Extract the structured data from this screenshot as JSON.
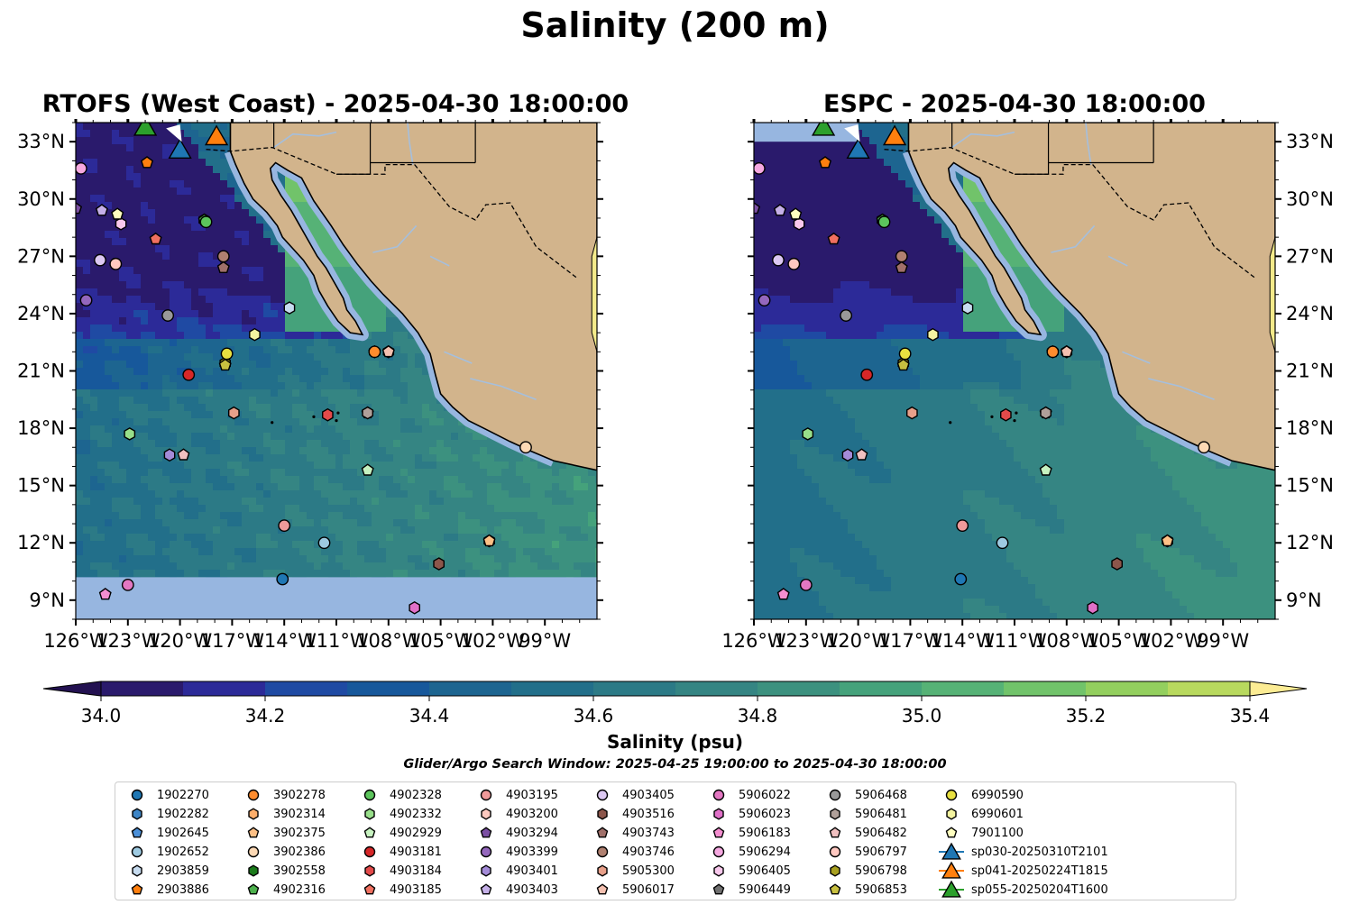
{
  "figure": {
    "title": "Salinity (200 m)",
    "colorbar_label": "Salinity (psu)",
    "search_window": "Glider/Argo Search Window: 2025-04-25 19:00:00 to 2025-04-30 18:00:00"
  },
  "chart_data": [
    {
      "type": "heatmap",
      "title": "RTOFS (West Coast) - 2025-04-30 18:00:00",
      "xlim": [
        -126,
        -96
      ],
      "ylim": [
        8,
        34
      ],
      "x_ticks": [
        "126°W",
        "123°W",
        "120°W",
        "117°W",
        "114°W",
        "111°W",
        "108°W",
        "105°W",
        "102°W",
        "99°W"
      ],
      "y_ticks": [
        "9°N",
        "12°N",
        "15°N",
        "18°N",
        "21°N",
        "24°N",
        "27°N",
        "30°N",
        "33°N"
      ],
      "y_tick_side": "left",
      "no_data_below_lat": 10.2,
      "field_range": [
        34.0,
        35.4
      ]
    },
    {
      "type": "heatmap",
      "title": "ESPC - 2025-04-30 18:00:00",
      "xlim": [
        -126,
        -96
      ],
      "ylim": [
        8,
        34
      ],
      "x_ticks": [
        "126°W",
        "123°W",
        "120°W",
        "117°W",
        "114°W",
        "111°W",
        "108°W",
        "105°W",
        "102°W",
        "99°W"
      ],
      "y_ticks": [
        "9°N",
        "12°N",
        "15°N",
        "18°N",
        "21°N",
        "24°N",
        "27°N",
        "30°N",
        "33°N"
      ],
      "y_tick_side": "right",
      "no_data_above_lat": 33.0,
      "field_range": [
        34.0,
        35.4
      ]
    }
  ],
  "colorbar": {
    "min": 34.0,
    "max": 35.4,
    "levels": [
      34.0,
      34.1,
      34.2,
      34.3,
      34.4,
      34.5,
      34.6,
      34.7,
      34.8,
      34.9,
      35.0,
      35.1,
      35.2,
      35.3,
      35.4
    ],
    "colors": [
      "#2a1a6c",
      "#2c2a98",
      "#1f4aa3",
      "#17589b",
      "#1d6590",
      "#226f8a",
      "#2c7a86",
      "#358583",
      "#3c917f",
      "#45a27b",
      "#56b276",
      "#71c36a",
      "#93cf5e",
      "#b8d95e",
      "#d6e06e"
    ],
    "under_color": "#231151",
    "over_color": "#fcec94",
    "tick_labels": [
      "34.0",
      "34.2",
      "34.4",
      "34.6",
      "34.8",
      "35.0",
      "35.2",
      "35.4"
    ],
    "extend": "both"
  },
  "map_colors": {
    "land": "#d2b48c",
    "nodata": "#97b6e0",
    "coast": "#000000",
    "river": "#a5bfdd"
  },
  "platforms": [
    {
      "id": "1902270",
      "marker": "circle",
      "color": "#1f77b4",
      "lon": -114.1,
      "lat": 10.1
    },
    {
      "id": "1902282",
      "marker": "hexagon",
      "color": "#3d85c6",
      "lon": -108.8,
      "lat": 22.0
    },
    {
      "id": "1902645",
      "marker": "pentagon",
      "color": "#4c90d8",
      "lon": -108.8,
      "lat": 22.0
    },
    {
      "id": "1902652",
      "marker": "circle",
      "color": "#9ecae1",
      "lon": -111.7,
      "lat": 12.0
    },
    {
      "id": "2903859",
      "marker": "hexagon",
      "color": "#c6dbef",
      "lon": -113.7,
      "lat": 24.3
    },
    {
      "id": "2903886",
      "marker": "pentagon",
      "color": "#ff7f0e",
      "lon": -121.9,
      "lat": 31.9
    },
    {
      "id": "3902278",
      "marker": "circle",
      "color": "#ff8c2e",
      "lon": -108.8,
      "lat": 22.0
    },
    {
      "id": "3902314",
      "marker": "hexagon",
      "color": "#fdae6b",
      "lon": -102.2,
      "lat": 12.1
    },
    {
      "id": "3902375",
      "marker": "pentagon",
      "color": "#fdc086",
      "lon": -102.2,
      "lat": 12.1
    },
    {
      "id": "3902386",
      "marker": "circle",
      "color": "#fdd9b5",
      "lon": -100.1,
      "lat": 17.0
    },
    {
      "id": "3902558",
      "marker": "hexagon",
      "color": "#1a7a1a",
      "lon": -118.6,
      "lat": 28.9
    },
    {
      "id": "4902316",
      "marker": "pentagon",
      "color": "#4cb04c",
      "lon": -118.6,
      "lat": 28.9
    },
    {
      "id": "4902328",
      "marker": "circle",
      "color": "#5cc45c",
      "lon": -118.5,
      "lat": 28.8
    },
    {
      "id": "4902332",
      "marker": "hexagon",
      "color": "#98df8a",
      "lon": -122.9,
      "lat": 17.7
    },
    {
      "id": "4902929",
      "marker": "pentagon",
      "color": "#c7f2c0",
      "lon": -109.2,
      "lat": 15.8
    },
    {
      "id": "4903181",
      "marker": "circle",
      "color": "#d62728",
      "lon": -119.5,
      "lat": 20.8
    },
    {
      "id": "4903184",
      "marker": "hexagon",
      "color": "#e34a4a",
      "lon": -111.5,
      "lat": 18.7
    },
    {
      "id": "4903185",
      "marker": "pentagon",
      "color": "#f07060",
      "lon": -121.4,
      "lat": 27.9
    },
    {
      "id": "4903195",
      "marker": "circle",
      "color": "#f09a9a",
      "lon": -114.0,
      "lat": 12.9
    },
    {
      "id": "4903200",
      "marker": "hexagon",
      "color": "#fbc8bf",
      "lon": -108.0,
      "lat": 22.0
    },
    {
      "id": "4903294",
      "marker": "pentagon",
      "color": "#7b4fa3",
      "lon": -126.0,
      "lat": 29.5
    },
    {
      "id": "4903399",
      "marker": "circle",
      "color": "#9467bd",
      "lon": -125.4,
      "lat": 24.7
    },
    {
      "id": "4903401",
      "marker": "hexagon",
      "color": "#a48bd8",
      "lon": -120.6,
      "lat": 16.6
    },
    {
      "id": "4903403",
      "marker": "pentagon",
      "color": "#c5b0e8",
      "lon": -124.5,
      "lat": 29.4
    },
    {
      "id": "4903405",
      "marker": "circle",
      "color": "#dcc8f2",
      "lon": -124.6,
      "lat": 26.8
    },
    {
      "id": "4903516",
      "marker": "hexagon",
      "color": "#8c564b",
      "lon": -105.1,
      "lat": 10.9
    },
    {
      "id": "4903743",
      "marker": "pentagon",
      "color": "#a0706a",
      "lon": -117.5,
      "lat": 26.4
    },
    {
      "id": "4903746",
      "marker": "circle",
      "color": "#b08070",
      "lon": -117.5,
      "lat": 27.0
    },
    {
      "id": "5905300",
      "marker": "hexagon",
      "color": "#e8a08a",
      "lon": -116.9,
      "lat": 18.8
    },
    {
      "id": "5906017",
      "marker": "pentagon",
      "color": "#f4c0b0",
      "lon": -108.0,
      "lat": 22.0
    },
    {
      "id": "5906022",
      "marker": "circle",
      "color": "#e377c2",
      "lon": -123.0,
      "lat": 9.8
    },
    {
      "id": "5906023",
      "marker": "hexagon",
      "color": "#e070c8",
      "lon": -106.5,
      "lat": 8.6
    },
    {
      "id": "5906183",
      "marker": "pentagon",
      "color": "#f48ed0",
      "lon": -124.3,
      "lat": 9.3
    },
    {
      "id": "5906294",
      "marker": "circle",
      "color": "#f5a8e0",
      "lon": -125.7,
      "lat": 31.6
    },
    {
      "id": "5906405",
      "marker": "hexagon",
      "color": "#f8c8ec",
      "lon": -123.4,
      "lat": 28.7
    },
    {
      "id": "5906449",
      "marker": "pentagon",
      "color": "#707070",
      "lon": -109.2,
      "lat": 18.8
    },
    {
      "id": "5906468",
      "marker": "circle",
      "color": "#999999",
      "lon": -120.7,
      "lat": 23.9
    },
    {
      "id": "5906481",
      "marker": "hexagon",
      "color": "#b0a09a",
      "lon": -109.2,
      "lat": 18.8
    },
    {
      "id": "5906482",
      "marker": "pentagon",
      "color": "#f0c0c0",
      "lon": -119.8,
      "lat": 16.6
    },
    {
      "id": "5906797",
      "marker": "circle",
      "color": "#ffc8c0",
      "lon": -123.7,
      "lat": 26.6
    },
    {
      "id": "5906798",
      "marker": "hexagon",
      "color": "#a8a020",
      "lon": -117.4,
      "lat": 21.4
    },
    {
      "id": "5906853",
      "marker": "pentagon",
      "color": "#c8c040",
      "lon": -117.4,
      "lat": 21.3
    },
    {
      "id": "6990590",
      "marker": "circle",
      "color": "#e8e040",
      "lon": -117.3,
      "lat": 21.9
    },
    {
      "id": "6990601",
      "marker": "hexagon",
      "color": "#f4f4a0",
      "lon": -115.7,
      "lat": 22.9
    },
    {
      "id": "7901100",
      "marker": "pentagon",
      "color": "#ffffc0",
      "lon": -123.6,
      "lat": 29.2
    },
    {
      "id": "sp030-20250310T2101",
      "marker": "triangle",
      "color": "#1f77b4",
      "lon": -120.0,
      "lat": 32.6,
      "line": true
    },
    {
      "id": "sp041-20250224T1815",
      "marker": "triangle",
      "color": "#ff7f0e",
      "lon": -117.9,
      "lat": 33.3,
      "line": true
    },
    {
      "id": "sp055-20250204T1600",
      "marker": "triangle",
      "color": "#2ca02c",
      "lon": -122.0,
      "lat": 33.8,
      "line": true
    }
  ]
}
